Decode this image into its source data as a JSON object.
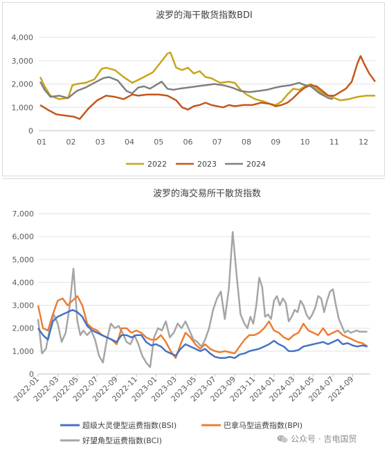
{
  "charts": [
    {
      "type": "line",
      "title": "波罗的海干散货指数BDI",
      "categories": [
        "01",
        "02",
        "03",
        "04",
        "05",
        "06",
        "07",
        "08",
        "09",
        "10",
        "11",
        "12"
      ],
      "ylim": [
        0,
        4000
      ],
      "yticks": [
        "0",
        "1,000",
        "2,000",
        "3,000",
        "4,000"
      ],
      "xaxis_range": [
        0.9,
        12.4
      ],
      "legend_position": "bottom",
      "gridlines": true,
      "series": [
        {
          "name": "2022",
          "color": "#c9a41a",
          "x": [
            0.95,
            1.1,
            1.3,
            1.6,
            1.9,
            2.05,
            2.2,
            2.5,
            2.8,
            3.05,
            3.2,
            3.5,
            3.8,
            4.1,
            4.5,
            4.8,
            5.05,
            5.3,
            5.4,
            5.6,
            5.8,
            6.0,
            6.2,
            6.4,
            6.6,
            6.8,
            7.1,
            7.4,
            7.6,
            7.8,
            8.0,
            8.3,
            8.6,
            8.8,
            9.0,
            9.2,
            9.4,
            9.6,
            9.8,
            10.0,
            10.2,
            10.4,
            10.6,
            10.9,
            11.2,
            11.5,
            11.8,
            12.1,
            12.4
          ],
          "y": [
            2300,
            1900,
            1500,
            1350,
            1400,
            1950,
            2000,
            2050,
            2200,
            2650,
            2700,
            2600,
            2300,
            2050,
            2300,
            2500,
            2900,
            3300,
            3350,
            2700,
            2600,
            2700,
            2450,
            2550,
            2300,
            2250,
            2050,
            2100,
            2050,
            1750,
            1550,
            1350,
            1250,
            1150,
            1100,
            1250,
            1550,
            1800,
            1750,
            1900,
            2000,
            1800,
            1600,
            1450,
            1300,
            1350,
            1450,
            1500,
            1500
          ]
        },
        {
          "name": "2023",
          "color": "#c4561b",
          "x": [
            0.95,
            1.2,
            1.5,
            1.8,
            2.1,
            2.3,
            2.6,
            2.9,
            3.2,
            3.5,
            3.8,
            4.1,
            4.3,
            4.6,
            5.0,
            5.3,
            5.6,
            5.8,
            6.0,
            6.2,
            6.4,
            6.6,
            6.8,
            7.0,
            7.2,
            7.4,
            7.6,
            7.9,
            8.2,
            8.5,
            8.8,
            9.0,
            9.2,
            9.4,
            9.6,
            9.8,
            10.0,
            10.2,
            10.4,
            10.6,
            10.8,
            11.0,
            11.2,
            11.4,
            11.6,
            11.8,
            11.9,
            12.05,
            12.2,
            12.4
          ],
          "y": [
            1100,
            900,
            700,
            650,
            600,
            500,
            950,
            1300,
            1500,
            1450,
            1350,
            1550,
            1500,
            1550,
            1550,
            1500,
            1300,
            1000,
            900,
            1050,
            1100,
            1200,
            1100,
            1050,
            1000,
            1100,
            1050,
            1100,
            1100,
            1200,
            1150,
            1050,
            1100,
            1200,
            1400,
            1650,
            1850,
            1950,
            1900,
            1700,
            1500,
            1500,
            1650,
            1800,
            2100,
            2900,
            3200,
            2800,
            2450,
            2100
          ]
        },
        {
          "name": "2024",
          "color": "#7f7f7f",
          "x": [
            0.95,
            1.1,
            1.3,
            1.6,
            1.9,
            2.2,
            2.5,
            2.8,
            3.1,
            3.3,
            3.6,
            3.9,
            4.1,
            4.3,
            4.5,
            4.7,
            4.9,
            5.1,
            5.3,
            5.5,
            5.7,
            6.0,
            6.3,
            6.6,
            6.9,
            7.2,
            7.5,
            7.8,
            8.1,
            8.4,
            8.7,
            9.0,
            9.2,
            9.5,
            9.8,
            10.0,
            10.2,
            10.5,
            10.8,
            10.95
          ],
          "y": [
            2100,
            1750,
            1450,
            1500,
            1400,
            1700,
            1850,
            2050,
            2250,
            2300,
            2150,
            1700,
            1600,
            1850,
            1900,
            1800,
            1950,
            2100,
            1800,
            1750,
            1800,
            1850,
            1900,
            1950,
            2000,
            1950,
            1850,
            1700,
            1650,
            1700,
            1750,
            1850,
            1900,
            1950,
            2050,
            1950,
            1900,
            1600,
            1400,
            1350
          ]
        }
      ]
    },
    {
      "type": "line",
      "title": "波罗的海交易所干散货指数",
      "ylim": [
        0,
        7000
      ],
      "yticks": [
        "0",
        "1,000",
        "2,000",
        "3,000",
        "4,000",
        "5,000",
        "6,000",
        "7,000"
      ],
      "xaxis_range": [
        0,
        33.8
      ],
      "xlabels": [
        "2022-01",
        "2022-03",
        "2022-05",
        "2022-07",
        "2022-09",
        "2022-11",
        "2023-01",
        "2023-03",
        "2023-05",
        "2023-07",
        "2023-09",
        "2023-11",
        "2024-01",
        "2024-03",
        "2024-05",
        "2024-07",
        "2024-09"
      ],
      "legend_position": "bottom",
      "gridlines": true,
      "series": [
        {
          "name": "超级大灵便型运费指数(BSI)",
          "color": "#4472c4",
          "x": [
            0,
            0.5,
            1,
            1.5,
            2,
            2.5,
            3,
            3.5,
            4,
            4.5,
            5,
            5.5,
            6,
            6.5,
            7,
            7.5,
            8,
            8.5,
            9,
            9.5,
            10,
            10.5,
            11,
            11.5,
            12,
            12.5,
            13,
            13.5,
            14,
            14.5,
            15,
            15.5,
            16,
            16.5,
            17,
            17.5,
            18,
            18.5,
            19,
            19.5,
            20,
            20.5,
            21,
            21.5,
            22,
            22.5,
            23,
            23.5,
            24,
            24.5,
            25,
            25.5,
            26,
            26.5,
            27,
            27.5,
            28,
            28.5,
            29,
            29.5,
            30,
            30.5,
            31,
            31.5,
            32,
            32.5,
            33,
            33.5
          ],
          "y": [
            2000,
            1700,
            1500,
            2300,
            2500,
            2600,
            2700,
            2800,
            2700,
            2500,
            2100,
            1900,
            1800,
            1700,
            1600,
            1500,
            1400,
            1700,
            1700,
            1600,
            1700,
            1700,
            1400,
            1250,
            1300,
            1200,
            1000,
            900,
            800,
            1100,
            1300,
            1200,
            1100,
            1000,
            1100,
            900,
            750,
            700,
            700,
            750,
            700,
            850,
            900,
            1000,
            1050,
            1100,
            1200,
            1300,
            1450,
            1300,
            1200,
            1000,
            1000,
            1050,
            1200,
            1250,
            1300,
            1350,
            1400,
            1300,
            1400,
            1500,
            1300,
            1350,
            1250,
            1200,
            1250,
            1200
          ]
        },
        {
          "name": "巴拿马型运费指数(BPI)",
          "color": "#ed7d31",
          "x": [
            0,
            0.5,
            1,
            1.5,
            2,
            2.5,
            3,
            3.5,
            4,
            4.5,
            5,
            5.5,
            6,
            6.5,
            7,
            7.5,
            8,
            8.5,
            9,
            9.5,
            10,
            10.5,
            11,
            11.5,
            12,
            12.5,
            13,
            13.5,
            14,
            14.5,
            15,
            15.5,
            16,
            16.5,
            17,
            17.5,
            18,
            18.5,
            19,
            19.5,
            20,
            20.5,
            21,
            21.5,
            22,
            22.5,
            23,
            23.5,
            24,
            24.5,
            25,
            25.5,
            26,
            26.5,
            27,
            27.5,
            28,
            28.5,
            29,
            29.5,
            30,
            30.5,
            31,
            31.5,
            32,
            32.5,
            33,
            33.5
          ],
          "y": [
            3000,
            2000,
            1900,
            2600,
            3200,
            3300,
            3000,
            3200,
            3400,
            3000,
            2200,
            2000,
            1900,
            1700,
            1600,
            1500,
            1300,
            2000,
            2000,
            1800,
            1900,
            1800,
            1600,
            1500,
            1500,
            1700,
            1400,
            1000,
            700,
            1300,
            1800,
            1600,
            1300,
            1100,
            1300,
            1100,
            1000,
            950,
            1000,
            950,
            900,
            1200,
            1500,
            1700,
            1700,
            1800,
            2000,
            2300,
            1900,
            1800,
            1600,
            1500,
            1700,
            1800,
            2200,
            1900,
            1800,
            1700,
            2000,
            1700,
            1800,
            1900,
            1700,
            1600,
            1500,
            1400,
            1350,
            1200
          ]
        },
        {
          "name": "好望角型运费指数(BCI)",
          "color": "#a5a5a5",
          "x": [
            0,
            0.4,
            0.8,
            1.2,
            1.6,
            2,
            2.4,
            2.8,
            3.2,
            3.6,
            4,
            4.3,
            4.6,
            5,
            5.4,
            5.8,
            6.2,
            6.6,
            7,
            7.4,
            7.8,
            8.2,
            8.6,
            9,
            9.4,
            9.8,
            10.2,
            10.6,
            11,
            11.4,
            11.8,
            12.2,
            12.6,
            13,
            13.4,
            13.8,
            14.2,
            14.6,
            15,
            15.4,
            15.8,
            16.2,
            16.6,
            17,
            17.4,
            17.8,
            18.2,
            18.6,
            19,
            19.4,
            19.8,
            20.2,
            20.6,
            21,
            21.3,
            21.6,
            21.9,
            22.2,
            22.5,
            22.8,
            23.1,
            23.4,
            23.7,
            24,
            24.3,
            24.6,
            24.9,
            25.2,
            25.5,
            25.8,
            26.1,
            26.4,
            26.7,
            27,
            27.3,
            27.6,
            27.9,
            28.2,
            28.5,
            28.8,
            29.1,
            29.4,
            29.7,
            30,
            30.3,
            30.6,
            30.9,
            31.2,
            31.5,
            31.8,
            32.1,
            32.4,
            32.7,
            33,
            33.3,
            33.5
          ],
          "y": [
            2400,
            900,
            1100,
            2000,
            2600,
            2200,
            1400,
            1800,
            2900,
            4600,
            2300,
            1700,
            1900,
            1700,
            1900,
            1500,
            800,
            500,
            1500,
            2200,
            2000,
            2100,
            1800,
            1400,
            1300,
            1700,
            1300,
            800,
            500,
            300,
            1600,
            2000,
            1900,
            2300,
            1600,
            1800,
            2200,
            2000,
            2300,
            1900,
            1500,
            1400,
            1200,
            1500,
            2000,
            2800,
            3300,
            3600,
            2400,
            3700,
            6200,
            4300,
            2600,
            2200,
            2000,
            2500,
            2200,
            3000,
            4200,
            3800,
            2500,
            2600,
            2400,
            3200,
            3400,
            3000,
            3300,
            3100,
            2300,
            2500,
            2800,
            2700,
            3200,
            3000,
            2600,
            2400,
            2600,
            2900,
            3400,
            3300,
            2700,
            3200,
            3600,
            3700,
            3000,
            2400,
            2100,
            1800,
            1900,
            1800,
            1850,
            1900,
            1850,
            1850,
            1850,
            1850
          ]
        }
      ]
    }
  ],
  "watermark": {
    "text": "公众号 · 吉电国贸",
    "icon": "wechat-icon"
  }
}
